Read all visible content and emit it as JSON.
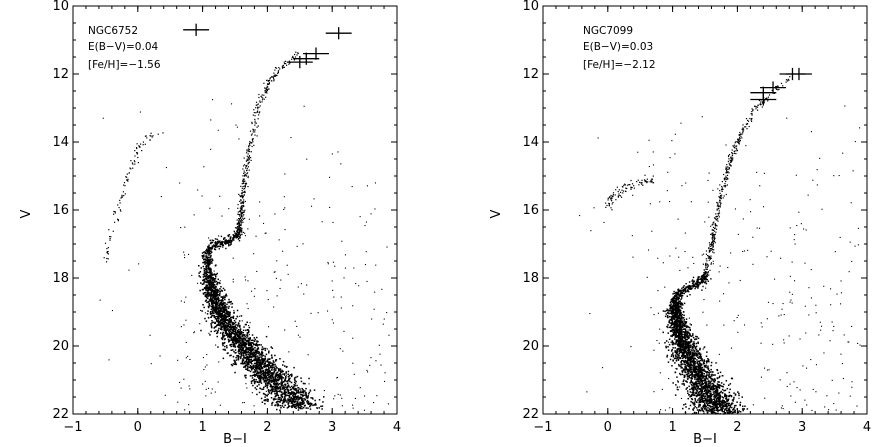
{
  "chart_data": [
    {
      "type": "scatter",
      "xlabel": "B−I",
      "ylabel": "V",
      "xlim": [
        -1,
        4
      ],
      "ylim": [
        22,
        10
      ],
      "y_inverted": true,
      "xticks": [
        -1,
        0,
        1,
        2,
        3,
        4
      ],
      "yticks": [
        10,
        12,
        14,
        16,
        18,
        20,
        22
      ],
      "grid": false,
      "annotations": [
        "NGC6752",
        "E(B−V)=0.04",
        "[Fe/H]=−1.56"
      ],
      "error_bar_legend": {
        "x": 0.9,
        "y": 10.7,
        "xerr": 0.2,
        "yerr": 0.18
      },
      "error_bars": [
        {
          "x": 3.1,
          "y": 10.8,
          "xerr": 0.2,
          "yerr": 0.18
        },
        {
          "x": 2.75,
          "y": 11.4,
          "xerr": 0.2,
          "yerr": 0.18
        },
        {
          "x": 2.6,
          "y": 11.55,
          "xerr": 0.2,
          "yerr": 0.18
        },
        {
          "x": 2.5,
          "y": 11.65,
          "xerr": 0.2,
          "yerr": 0.18
        }
      ],
      "sequences": {
        "main_sequence": [
          [
            1.05,
            17.3
          ],
          [
            1.1,
            17.9
          ],
          [
            1.15,
            18.4
          ],
          [
            1.25,
            18.9
          ],
          [
            1.4,
            19.4
          ],
          [
            1.55,
            19.8
          ],
          [
            1.75,
            20.3
          ],
          [
            2.0,
            20.8
          ],
          [
            2.25,
            21.3
          ],
          [
            2.5,
            21.8
          ]
        ],
        "subgiant_branch": [
          [
            1.05,
            17.3
          ],
          [
            1.2,
            17.0
          ],
          [
            1.4,
            16.95
          ],
          [
            1.55,
            16.7
          ]
        ],
        "red_giant_branch": [
          [
            1.55,
            16.7
          ],
          [
            1.6,
            16.0
          ],
          [
            1.65,
            15.0
          ],
          [
            1.75,
            14.0
          ],
          [
            1.85,
            13.0
          ],
          [
            2.0,
            12.3
          ],
          [
            2.2,
            11.8
          ],
          [
            2.5,
            11.4
          ]
        ],
        "horizontal_branch": [
          [
            -0.5,
            17.5
          ],
          [
            -0.45,
            17.0
          ],
          [
            -0.35,
            16.3
          ],
          [
            -0.25,
            15.6
          ],
          [
            -0.15,
            15.0
          ],
          [
            -0.05,
            14.5
          ],
          [
            0.05,
            14.1
          ],
          [
            0.15,
            13.9
          ],
          [
            0.4,
            13.7
          ]
        ]
      }
    },
    {
      "type": "scatter",
      "xlabel": "B−I",
      "ylabel": "V",
      "xlim": [
        -1,
        4
      ],
      "ylim": [
        22,
        10
      ],
      "y_inverted": true,
      "xticks": [
        -1,
        0,
        1,
        2,
        3,
        4
      ],
      "yticks": [
        10,
        12,
        14,
        16,
        18,
        20,
        22
      ],
      "grid": false,
      "annotations": [
        "NGC7099",
        "E(B−V)=0.03",
        "[Fe/H]=−2.12"
      ],
      "error_bars": [
        {
          "x": 2.95,
          "y": 12.0,
          "xerr": 0.2,
          "yerr": 0.18
        },
        {
          "x": 2.85,
          "y": 12.0,
          "xerr": 0.2,
          "yerr": 0.18
        },
        {
          "x": 2.55,
          "y": 12.4,
          "xerr": 0.2,
          "yerr": 0.18
        },
        {
          "x": 2.4,
          "y": 12.55,
          "xerr": 0.2,
          "yerr": 0.18
        },
        {
          "x": 2.4,
          "y": 12.75,
          "xerr": 0.2,
          "yerr": 0.18
        }
      ],
      "sequences": {
        "main_sequence": [
          [
            1.05,
            18.6
          ],
          [
            1.05,
            19.0
          ],
          [
            1.1,
            19.5
          ],
          [
            1.2,
            20.0
          ],
          [
            1.3,
            20.5
          ],
          [
            1.45,
            21.0
          ],
          [
            1.6,
            21.5
          ],
          [
            1.75,
            22.0
          ]
        ],
        "subgiant_branch": [
          [
            1.05,
            18.6
          ],
          [
            1.15,
            18.4
          ],
          [
            1.35,
            18.2
          ],
          [
            1.5,
            18.0
          ]
        ],
        "red_giant_branch": [
          [
            1.5,
            18.0
          ],
          [
            1.6,
            17.0
          ],
          [
            1.7,
            16.0
          ],
          [
            1.8,
            15.2
          ],
          [
            1.9,
            14.5
          ],
          [
            2.05,
            13.8
          ],
          [
            2.25,
            13.1
          ],
          [
            2.5,
            12.6
          ],
          [
            2.8,
            12.1
          ]
        ],
        "horizontal_branch": [
          [
            0.0,
            15.95
          ],
          [
            0.05,
            15.7
          ],
          [
            0.15,
            15.5
          ],
          [
            0.3,
            15.35
          ],
          [
            0.5,
            15.2
          ],
          [
            0.7,
            15.1
          ]
        ]
      }
    }
  ]
}
